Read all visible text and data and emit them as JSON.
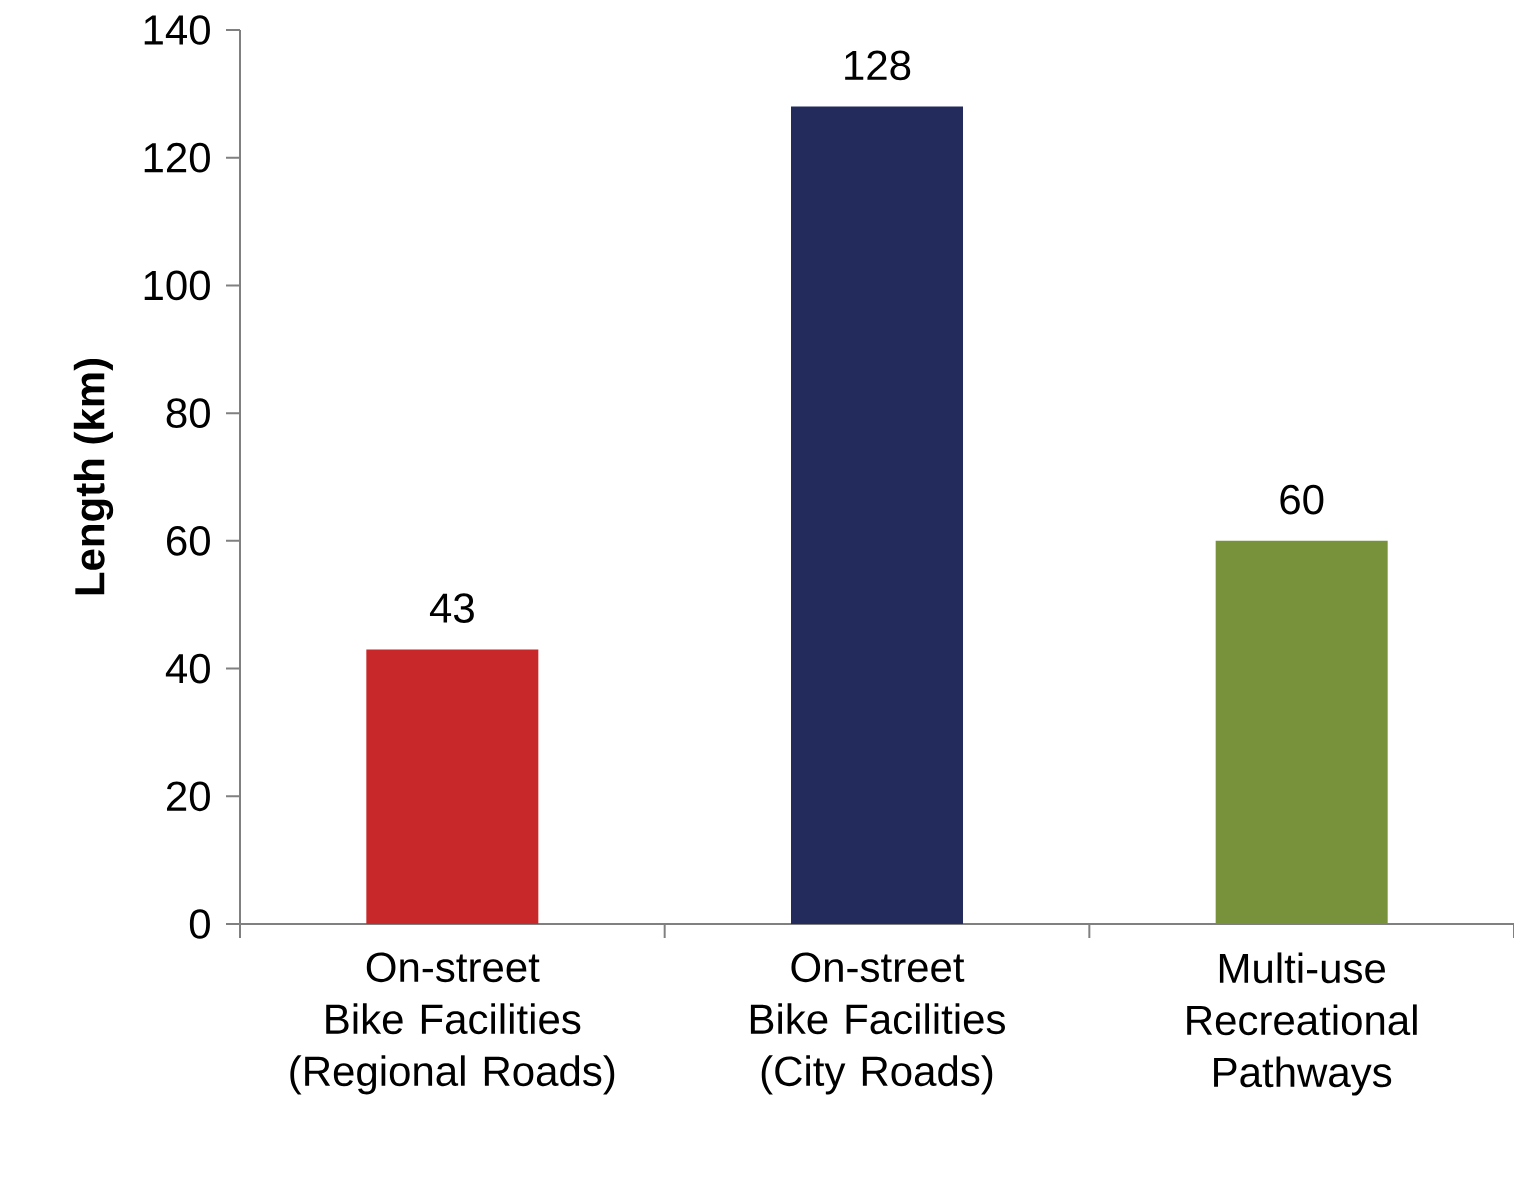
{
  "chart_data": {
    "type": "bar",
    "ylabel": "Length (km)",
    "categories": [
      "On-street Bike Facilities (Regional Roads)",
      "On-street Bike Facilities (City Roads)",
      "Multi-use Recreational Pathways"
    ],
    "values": [
      43,
      128,
      60
    ],
    "colors": [
      "#c8282a",
      "#232a5c",
      "#77923b"
    ],
    "ylim": [
      0,
      140
    ],
    "yticks": [
      0,
      20,
      40,
      60,
      80,
      100,
      120,
      140
    ],
    "data_labels": true,
    "grid": false
  }
}
